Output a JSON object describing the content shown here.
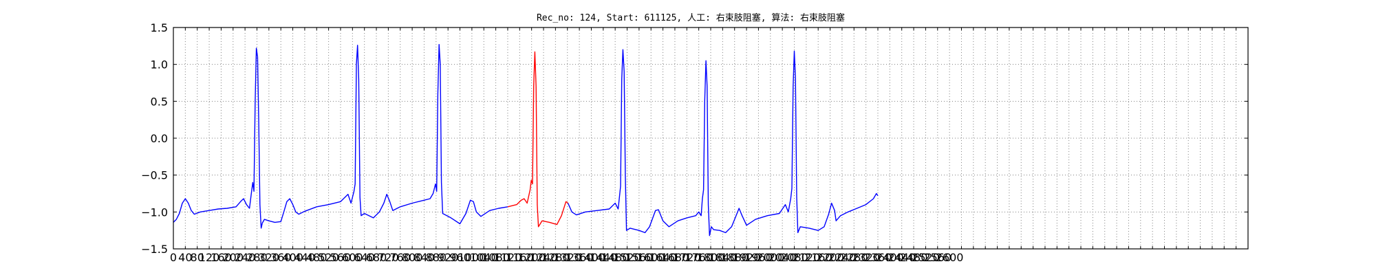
{
  "chart_data": {
    "type": "line",
    "title": "Rec_no: 124, Start: 611125, 人工: 右束肢阻塞, 算法: 右束肢阻塞",
    "xlabel": "",
    "ylabel": "",
    "xlim": [
      0,
      3600
    ],
    "ylim": [
      -1.5,
      1.5
    ],
    "grid": true,
    "x_grid_step": 40,
    "x_tick_labels": [
      "0",
      "40",
      "80",
      "120",
      "160",
      "200",
      "240",
      "280",
      "320",
      "360",
      "400",
      "440",
      "480",
      "520",
      "560",
      "600",
      "640",
      "680",
      "720",
      "760",
      "800",
      "840",
      "880",
      "920",
      "960",
      "1000",
      "1040",
      "1080",
      "1120",
      "1160",
      "1200",
      "1240",
      "1280",
      "1320",
      "1360",
      "1400",
      "1440",
      "1480",
      "1520",
      "1560",
      "1600",
      "1640",
      "1680",
      "1720",
      "1760",
      "1800",
      "1840",
      "1880",
      "1920",
      "1960",
      "2000",
      "2040",
      "2080",
      "2120",
      "2160",
      "2200",
      "2240",
      "2280",
      "2320",
      "2360",
      "2400",
      "2440",
      "2480",
      "2520",
      "2560",
      "2600"
    ],
    "y_ticks": [
      -1.5,
      -1.0,
      -0.5,
      0.0,
      0.5,
      1.0,
      1.5
    ],
    "y_tick_labels": [
      "−1.5",
      "−1.0",
      "−0.5",
      "0.0",
      "0.5",
      "1.0",
      "1.5"
    ],
    "series": [
      {
        "color": "#0000ff",
        "segments": [
          [
            [
              0,
              -1.14
            ],
            [
              10,
              -1.1
            ],
            [
              20,
              -1.02
            ],
            [
              30,
              -0.88
            ],
            [
              40,
              -0.82
            ],
            [
              50,
              -0.88
            ],
            [
              60,
              -0.98
            ],
            [
              70,
              -1.03
            ],
            [
              90,
              -1.0
            ],
            [
              120,
              -0.98
            ],
            [
              150,
              -0.96
            ],
            [
              180,
              -0.95
            ],
            [
              210,
              -0.93
            ],
            [
              225,
              -0.86
            ],
            [
              235,
              -0.82
            ],
            [
              245,
              -0.9
            ],
            [
              255,
              -0.95
            ],
            [
              262,
              -0.72
            ],
            [
              266,
              -0.6
            ],
            [
              270,
              -0.72
            ],
            [
              274,
              0.5
            ],
            [
              278,
              1.22
            ],
            [
              282,
              1.1
            ],
            [
              286,
              0.2
            ],
            [
              290,
              -0.9
            ],
            [
              294,
              -1.22
            ],
            [
              298,
              -1.15
            ],
            [
              305,
              -1.1
            ],
            [
              320,
              -1.12
            ],
            [
              340,
              -1.14
            ],
            [
              360,
              -1.13
            ],
            [
              370,
              -1.0
            ],
            [
              380,
              -0.86
            ],
            [
              390,
              -0.82
            ],
            [
              400,
              -0.9
            ],
            [
              410,
              -1.0
            ],
            [
              420,
              -1.03
            ],
            [
              440,
              -0.99
            ],
            [
              480,
              -0.93
            ],
            [
              520,
              -0.9
            ],
            [
              560,
              -0.86
            ],
            [
              575,
              -0.8
            ],
            [
              585,
              -0.76
            ],
            [
              595,
              -0.88
            ],
            [
              605,
              -0.72
            ],
            [
              609,
              -0.62
            ],
            [
              613,
              1.0
            ],
            [
              617,
              1.26
            ],
            [
              621,
              0.8
            ],
            [
              625,
              -0.8
            ],
            [
              629,
              -1.05
            ],
            [
              640,
              -1.02
            ],
            [
              670,
              -1.08
            ],
            [
              690,
              -1.0
            ],
            [
              705,
              -0.88
            ],
            [
              715,
              -0.76
            ],
            [
              725,
              -0.86
            ],
            [
              735,
              -0.98
            ],
            [
              760,
              -0.93
            ],
            [
              800,
              -0.88
            ],
            [
              840,
              -0.84
            ],
            [
              860,
              -0.82
            ],
            [
              870,
              -0.75
            ],
            [
              878,
              -0.62
            ],
            [
              882,
              -0.72
            ],
            [
              886,
              0.6
            ],
            [
              890,
              1.27
            ],
            [
              894,
              1.0
            ],
            [
              898,
              -0.6
            ],
            [
              902,
              -1.02
            ],
            [
              930,
              -1.08
            ],
            [
              960,
              -1.16
            ],
            [
              980,
              -1.02
            ],
            [
              995,
              -0.84
            ],
            [
              1005,
              -0.86
            ],
            [
              1015,
              -1.0
            ],
            [
              1030,
              -1.06
            ],
            [
              1060,
              -0.98
            ],
            [
              1090,
              -0.95
            ],
            [
              1120,
              -0.93
            ]
          ]
        ]
      },
      {
        "color": "#ff0000",
        "segments": [
          [
            [
              1120,
              -0.93
            ],
            [
              1150,
              -0.9
            ],
            [
              1165,
              -0.84
            ],
            [
              1175,
              -0.82
            ],
            [
              1185,
              -0.88
            ],
            [
              1195,
              -0.7
            ],
            [
              1199,
              -0.57
            ],
            [
              1203,
              -0.62
            ],
            [
              1207,
              0.7
            ],
            [
              1211,
              1.17
            ],
            [
              1215,
              0.7
            ],
            [
              1219,
              -0.9
            ],
            [
              1223,
              -1.2
            ],
            [
              1235,
              -1.12
            ],
            [
              1260,
              -1.14
            ],
            [
              1285,
              -1.17
            ],
            [
              1300,
              -1.05
            ],
            [
              1315,
              -0.86
            ],
            [
              1322,
              -0.88
            ]
          ]
        ]
      },
      {
        "color": "#0000ff",
        "segments": [
          [
            [
              1322,
              -0.88
            ],
            [
              1335,
              -1.0
            ],
            [
              1350,
              -1.04
            ],
            [
              1380,
              -1.0
            ],
            [
              1420,
              -0.98
            ],
            [
              1460,
              -0.96
            ],
            [
              1480,
              -0.88
            ],
            [
              1490,
              -0.96
            ],
            [
              1498,
              -0.65
            ],
            [
              1502,
              0.8
            ],
            [
              1506,
              1.2
            ],
            [
              1510,
              0.9
            ],
            [
              1514,
              -0.5
            ],
            [
              1518,
              -1.25
            ],
            [
              1530,
              -1.22
            ],
            [
              1560,
              -1.25
            ],
            [
              1580,
              -1.28
            ],
            [
              1595,
              -1.2
            ],
            [
              1615,
              -0.98
            ],
            [
              1625,
              -0.97
            ],
            [
              1640,
              -1.12
            ],
            [
              1660,
              -1.2
            ],
            [
              1690,
              -1.12
            ],
            [
              1720,
              -1.08
            ],
            [
              1750,
              -1.05
            ],
            [
              1760,
              -1.0
            ],
            [
              1768,
              -1.05
            ],
            [
              1772,
              -0.82
            ],
            [
              1776,
              -0.7
            ],
            [
              1780,
              0.5
            ],
            [
              1784,
              1.05
            ],
            [
              1788,
              0.7
            ],
            [
              1792,
              -0.9
            ],
            [
              1796,
              -1.32
            ],
            [
              1802,
              -1.2
            ],
            [
              1810,
              -1.24
            ],
            [
              1830,
              -1.25
            ],
            [
              1850,
              -1.28
            ],
            [
              1870,
              -1.2
            ],
            [
              1885,
              -1.05
            ],
            [
              1895,
              -0.95
            ],
            [
              1905,
              -1.05
            ],
            [
              1920,
              -1.18
            ],
            [
              1950,
              -1.1
            ],
            [
              1990,
              -1.05
            ],
            [
              2030,
              -1.02
            ],
            [
              2050,
              -0.9
            ],
            [
              2060,
              -1.0
            ],
            [
              2068,
              -0.82
            ],
            [
              2072,
              -0.68
            ],
            [
              2076,
              0.7
            ],
            [
              2080,
              1.18
            ],
            [
              2084,
              0.8
            ],
            [
              2088,
              -0.8
            ],
            [
              2092,
              -1.28
            ],
            [
              2100,
              -1.2
            ],
            [
              2130,
              -1.22
            ],
            [
              2160,
              -1.25
            ],
            [
              2180,
              -1.2
            ],
            [
              2195,
              -1.03
            ],
            [
              2205,
              -0.88
            ],
            [
              2215,
              -0.98
            ],
            [
              2220,
              -1.12
            ],
            [
              2235,
              -1.05
            ],
            [
              2260,
              -1.0
            ],
            [
              2290,
              -0.95
            ],
            [
              2320,
              -0.9
            ],
            [
              2345,
              -0.82
            ],
            [
              2355,
              -0.75
            ],
            [
              2360,
              -0.78
            ]
          ]
        ]
      }
    ]
  }
}
